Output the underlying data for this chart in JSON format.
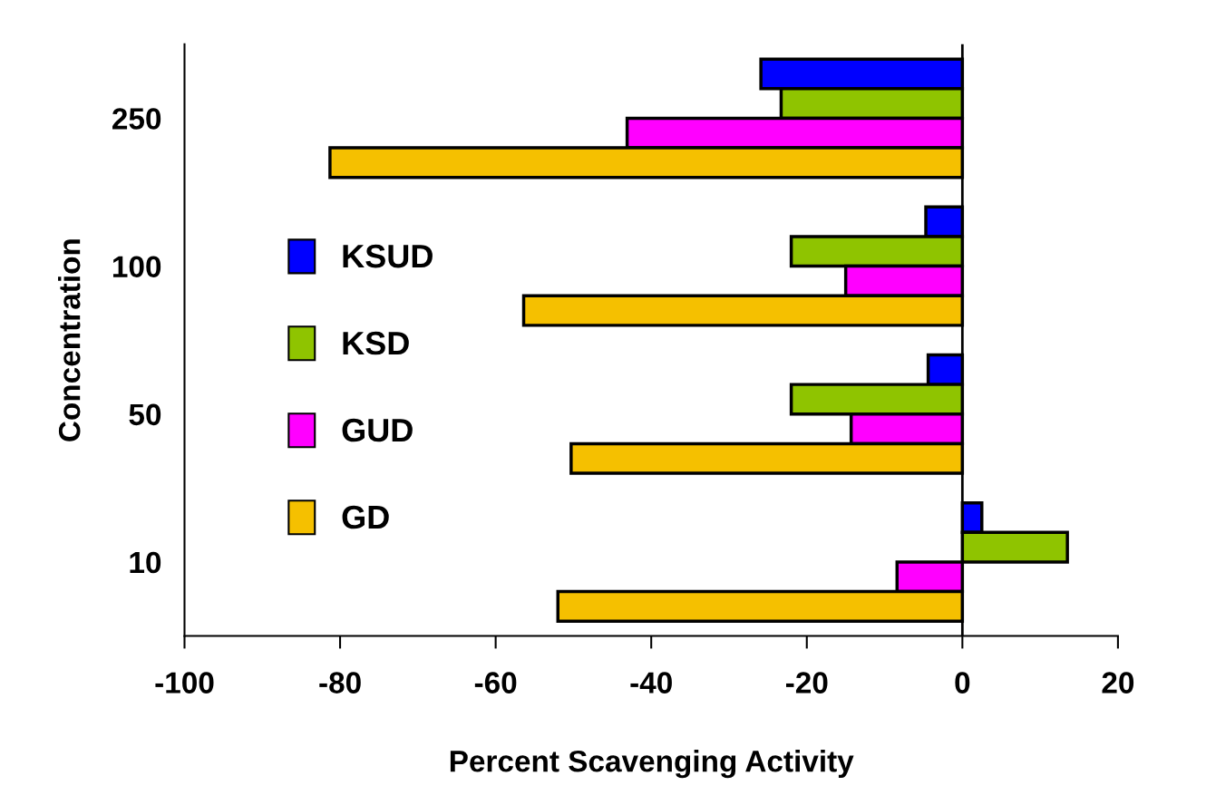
{
  "chart_data": {
    "type": "bar",
    "orientation": "horizontal",
    "xlabel": "Percent Scavenging Activity",
    "ylabel": "Concentration",
    "categories": [
      "250",
      "100",
      "50",
      "10"
    ],
    "series": [
      {
        "name": "KSUD",
        "color": "#0000ff",
        "values": [
          -25.9,
          -4.7,
          -4.4,
          2.5
        ]
      },
      {
        "name": "KSD",
        "color": "#8fc400",
        "values": [
          -23.3,
          -22,
          -22,
          13.5
        ]
      },
      {
        "name": "GUD",
        "color": "#ff00ff",
        "values": [
          -43.1,
          -15,
          -14.3,
          -8.4
        ]
      },
      {
        "name": "GD",
        "color": "#f5c000",
        "values": [
          -81.3,
          -56.4,
          -50.3,
          -52
        ]
      }
    ],
    "xlim": [
      -100,
      20
    ],
    "xticks": [
      -100,
      -80,
      -60,
      -40,
      -20,
      0,
      20
    ],
    "ref_lines": [
      {
        "axis": "x",
        "value": 0
      }
    ],
    "grid": false,
    "legend": "left"
  }
}
